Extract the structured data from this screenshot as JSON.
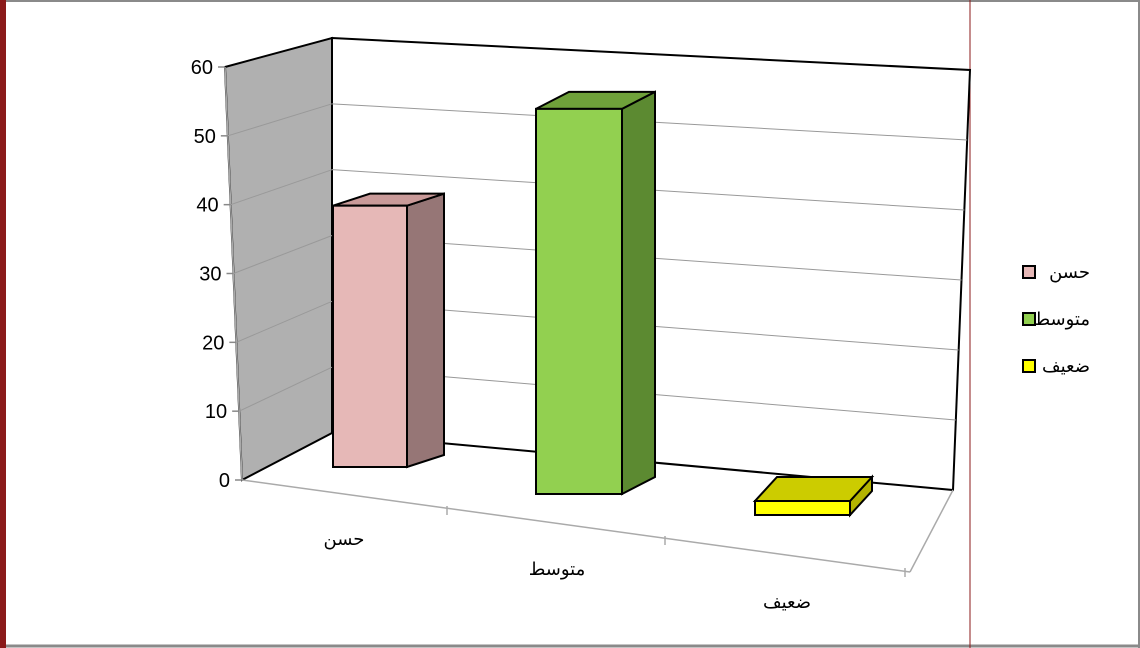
{
  "chart_data": {
    "type": "bar",
    "title": "",
    "xlabel": "",
    "ylabel": "",
    "categories": [
      "حسن",
      "متوسط",
      "ضعيف"
    ],
    "values": [
      38,
      56,
      2
    ],
    "ylim": [
      0,
      60
    ],
    "yticks": [
      "0",
      "10",
      "20",
      "30",
      "40",
      "50",
      "60"
    ],
    "grid": true,
    "three_d": true,
    "legend": {
      "position": "right",
      "entries": [
        "حسن",
        "متوسط",
        "ضعيف"
      ]
    },
    "colors": {
      "front": [
        "#e6b8b7",
        "#92d050",
        "#ffff00"
      ],
      "side": [
        "#967676",
        "#5c8a31",
        "#b3b300"
      ],
      "top": [
        "#c99a99",
        "#6fa13a",
        "#cccc00"
      ],
      "back_wall": "#ffffff",
      "side_wall": "#b0b0b0",
      "frame_border_left": "#8b1a1a",
      "divider": "#8b1a1a"
    }
  }
}
